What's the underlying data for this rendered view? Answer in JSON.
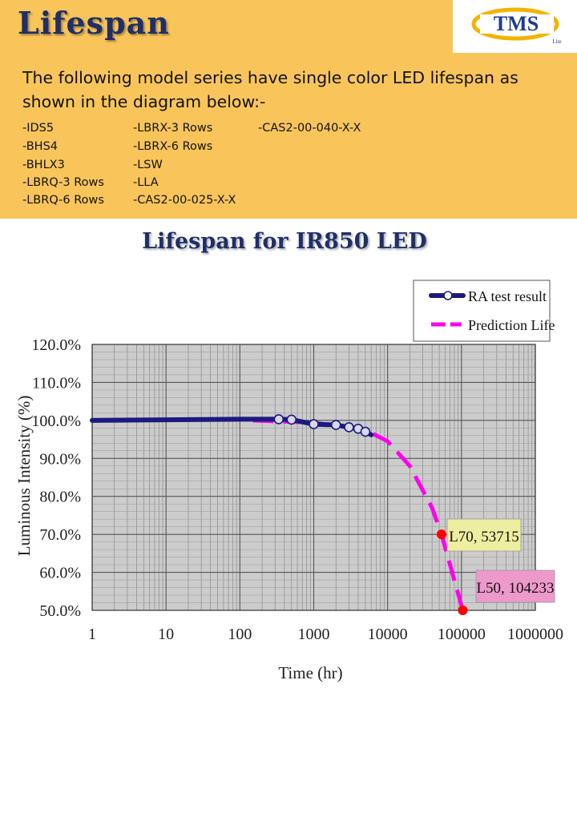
{
  "header": {
    "title": "Lifespan",
    "logo_text": "TMS",
    "logo_sub": "Lite",
    "intro_text": "The following model series have single color LED lifespan as shown in the diagram below:-",
    "models": {
      "col1": [
        "-IDS5",
        "-BHS4",
        "-BHLX3",
        "-LBRQ-3 Rows",
        "-LBRQ-6 Rows"
      ],
      "col2": [
        "-LBRX-3 Rows",
        "-LBRX-6 Rows",
        "-LSW",
        "-LLA",
        "-CAS2-00-025-X-X"
      ],
      "col3": [
        "-CAS2-00-040-X-X"
      ]
    }
  },
  "colors": {
    "header_bg": "#f9c55a",
    "title": "#1f2f6a",
    "test_line": "#1a1a80",
    "prediction_line": "#ff00ee",
    "marker": "#ff0000",
    "callout_l70": "#eeeea0",
    "callout_l50": "#ee99cc",
    "plot_bg": "#cccccc"
  },
  "chart_data": {
    "type": "line",
    "title": "Lifespan for IR850 LED",
    "xlabel": "Time (hr)",
    "ylabel": "Luminous Intensity (%)",
    "x_scale": "log",
    "xlim": [
      1,
      1000000
    ],
    "ylim": [
      50,
      120
    ],
    "x_ticks": [
      "1",
      "10",
      "100",
      "1000",
      "10000",
      "100000",
      "1000000"
    ],
    "y_ticks": [
      "50.0%",
      "60.0%",
      "70.0%",
      "80.0%",
      "90.0%",
      "100.0%",
      "110.0%",
      "120.0%"
    ],
    "grid": true,
    "legend_position": "top-right",
    "series": [
      {
        "name": "RA test result",
        "style": "solid-with-circle-markers",
        "x": [
          1,
          100,
          336,
          500,
          1000,
          2000,
          3000,
          4000,
          5000
        ],
        "y": [
          100,
          100.3,
          100.3,
          100.2,
          99.0,
          98.8,
          98.2,
          97.8,
          97.0
        ],
        "curve_end": [
          6000,
          96.2
        ]
      },
      {
        "name": "Prediction Life",
        "style": "dashed",
        "x": [
          150,
          1000,
          5000,
          10000,
          20000,
          40000,
          53715,
          80000,
          104233
        ],
        "y": [
          100,
          99.4,
          97.5,
          94.5,
          88,
          77,
          70,
          58,
          50
        ]
      }
    ],
    "annotations": [
      {
        "label": "L70, 53715",
        "x": 53715,
        "y": 70
      },
      {
        "label": "L50, 104233",
        "x": 104233,
        "y": 50
      }
    ]
  }
}
